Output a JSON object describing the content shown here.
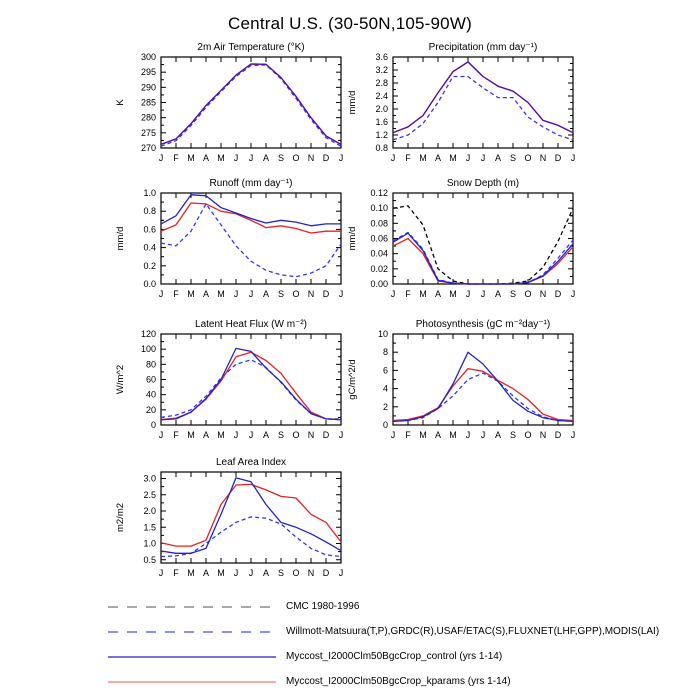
{
  "page_title": "Central U.S. (30-50N,105-90W)",
  "months": [
    "J",
    "F",
    "M",
    "A",
    "M",
    "J",
    "J",
    "A",
    "S",
    "O",
    "N",
    "D",
    "J"
  ],
  "series_defs": {
    "cmc": {
      "name": "CMC 1980-1996",
      "color": "#000000",
      "dashed": true
    },
    "obs": {
      "name": "Willmott-Matsuura(T,P),GRDC(R),USAF/ETAC(S),FLUXNET(LHF,GPP),MODIS(LAI)",
      "color": "#3333ff",
      "dashed": true
    },
    "control": {
      "name": "Myccost_I2000Clm50BgcCrop_control (yrs 1-14)",
      "color": "#2222cc",
      "dashed": false
    },
    "kparams": {
      "name": "Myccost_I2000Clm50BgcCrop_kparams (yrs 1-14)",
      "color": "#e62222",
      "dashed": false
    }
  },
  "legend": [
    {
      "series": "cmc",
      "label": "CMC 1980-1996",
      "color": "#8c8c8c",
      "dashed": true
    },
    {
      "series": "obs",
      "label": "Willmott-Matsuura(T,P),GRDC(R),USAF/ETAC(S),FLUXNET(LHF,GPP),MODIS(LAI)",
      "color": "#6b6be6",
      "dashed": true
    },
    {
      "series": "control",
      "label": "Myccost_I2000Clm50BgcCrop_control (yrs 1-14)",
      "color": "#4646c8",
      "dashed": false
    },
    {
      "series": "kparams",
      "label": "Myccost_I2000Clm50BgcCrop_kparams (yrs 1-14)",
      "color": "#f09393",
      "dashed": false
    }
  ],
  "chart_data": [
    {
      "id": "air-temperature",
      "type": "line",
      "title": "2m Air Temperature (°K)",
      "ylabel": "K",
      "ylim": [
        270,
        300
      ],
      "yticks": [
        270,
        275,
        280,
        285,
        290,
        295,
        300
      ],
      "ydecimals": 0,
      "categories": [
        "J",
        "F",
        "M",
        "A",
        "M",
        "J",
        "J",
        "A",
        "S",
        "O",
        "N",
        "D",
        "J"
      ],
      "series": [
        {
          "key": "obs",
          "values": [
            270.6,
            272.4,
            277.4,
            283.4,
            288.6,
            293.6,
            297.2,
            297.4,
            292.8,
            286.4,
            279.4,
            273.4,
            270.6
          ]
        },
        {
          "key": "kparams",
          "values": [
            271.2,
            273.0,
            278.0,
            284.0,
            289.0,
            294.0,
            297.7,
            297.6,
            293.2,
            287.0,
            280.0,
            274.0,
            271.2
          ]
        },
        {
          "key": "control",
          "values": [
            271.2,
            273.0,
            278.0,
            284.0,
            289.0,
            294.0,
            297.7,
            297.6,
            293.2,
            287.0,
            280.0,
            274.0,
            271.2
          ],
          "color": "#4b10b4"
        }
      ]
    },
    {
      "id": "precipitation",
      "type": "line",
      "title": "Precipitation (mm day⁻¹)",
      "ylabel": "mm/d",
      "ylim": [
        0.8,
        3.6
      ],
      "yticks": [
        0.8,
        1.2,
        1.6,
        2.0,
        2.4,
        2.8,
        3.2,
        3.6
      ],
      "ydecimals": 1,
      "categories": [
        "J",
        "F",
        "M",
        "A",
        "M",
        "J",
        "J",
        "A",
        "S",
        "O",
        "N",
        "D",
        "J"
      ],
      "series": [
        {
          "key": "obs",
          "values": [
            1.05,
            1.2,
            1.55,
            2.2,
            3.0,
            3.0,
            2.65,
            2.35,
            2.35,
            1.75,
            1.45,
            1.2,
            1.05
          ]
        },
        {
          "key": "kparams",
          "values": [
            1.27,
            1.45,
            1.8,
            2.5,
            3.15,
            3.45,
            3.0,
            2.7,
            2.55,
            2.2,
            1.65,
            1.5,
            1.27
          ]
        },
        {
          "key": "control",
          "values": [
            1.27,
            1.45,
            1.8,
            2.5,
            3.15,
            3.45,
            3.0,
            2.7,
            2.55,
            2.2,
            1.65,
            1.5,
            1.27
          ],
          "color": "#4b10b4"
        }
      ]
    },
    {
      "id": "runoff",
      "type": "line",
      "title": "Runoff (mm day⁻¹)",
      "ylabel": "mm/d",
      "ylim": [
        0.0,
        1.0
      ],
      "yticks": [
        0.0,
        0.2,
        0.4,
        0.6,
        0.8,
        1.0
      ],
      "ydecimals": 1,
      "categories": [
        "J",
        "F",
        "M",
        "A",
        "M",
        "J",
        "J",
        "A",
        "S",
        "O",
        "N",
        "D",
        "J"
      ],
      "series": [
        {
          "key": "obs",
          "values": [
            0.45,
            0.42,
            0.58,
            0.88,
            0.65,
            0.42,
            0.25,
            0.15,
            0.1,
            0.08,
            0.12,
            0.2,
            0.44
          ]
        },
        {
          "key": "kparams",
          "values": [
            0.58,
            0.65,
            0.89,
            0.88,
            0.8,
            0.77,
            0.7,
            0.62,
            0.64,
            0.61,
            0.56,
            0.58,
            0.58
          ]
        },
        {
          "key": "control",
          "values": [
            0.66,
            0.75,
            0.98,
            0.97,
            0.84,
            0.78,
            0.72,
            0.67,
            0.7,
            0.68,
            0.64,
            0.66,
            0.66
          ]
        }
      ]
    },
    {
      "id": "snow-depth",
      "type": "line",
      "title": "Snow Depth (m)",
      "ylabel": "mm/d",
      "ylim": [
        0.0,
        0.12
      ],
      "yticks": [
        0.0,
        0.02,
        0.04,
        0.06,
        0.08,
        0.1,
        0.12
      ],
      "ydecimals": 2,
      "categories": [
        "J",
        "F",
        "M",
        "A",
        "M",
        "J",
        "J",
        "A",
        "S",
        "O",
        "N",
        "D",
        "J"
      ],
      "series": [
        {
          "key": "cmc",
          "values": [
            0.1,
            0.103,
            0.078,
            0.02,
            0.004,
            0.0,
            0.0,
            0.0,
            0.001,
            0.004,
            0.022,
            0.056,
            0.1
          ]
        },
        {
          "key": "obs",
          "values": [
            0.057,
            0.068,
            0.046,
            0.006,
            0.001,
            0.0,
            0.0,
            0.0,
            0.0,
            0.002,
            0.012,
            0.034,
            0.058
          ]
        },
        {
          "key": "kparams",
          "values": [
            0.05,
            0.06,
            0.04,
            0.004,
            0.001,
            0.0,
            0.0,
            0.0,
            0.0,
            0.002,
            0.01,
            0.027,
            0.049
          ]
        },
        {
          "key": "control",
          "values": [
            0.055,
            0.067,
            0.044,
            0.005,
            0.001,
            0.0,
            0.0,
            0.0,
            0.0,
            0.002,
            0.011,
            0.03,
            0.053
          ]
        }
      ]
    },
    {
      "id": "latent-heat-flux",
      "type": "line",
      "title": "Latent Heat Flux (W m⁻²)",
      "ylabel": "W/m^2",
      "ylim": [
        0,
        120
      ],
      "yticks": [
        0,
        20,
        40,
        60,
        80,
        100,
        120
      ],
      "ydecimals": 0,
      "categories": [
        "J",
        "F",
        "M",
        "A",
        "M",
        "J",
        "J",
        "A",
        "S",
        "O",
        "N",
        "D",
        "J"
      ],
      "series": [
        {
          "key": "obs",
          "values": [
            10,
            13,
            20,
            38,
            62,
            80,
            86,
            76,
            56,
            33,
            15,
            8,
            8
          ]
        },
        {
          "key": "kparams",
          "values": [
            7,
            9,
            17,
            34,
            58,
            90,
            96,
            85,
            68,
            42,
            17,
            8,
            7
          ]
        },
        {
          "key": "control",
          "values": [
            7,
            8,
            17,
            35,
            60,
            101,
            97,
            75,
            57,
            34,
            15,
            8,
            7
          ]
        }
      ]
    },
    {
      "id": "photosynthesis",
      "type": "line",
      "title": "Photosynthesis (gC m⁻²day⁻¹)",
      "ylabel": "gC/m^2/d",
      "ylim": [
        0,
        10
      ],
      "yticks": [
        0,
        2,
        4,
        6,
        8,
        10
      ],
      "ydecimals": 0,
      "categories": [
        "J",
        "F",
        "M",
        "A",
        "M",
        "J",
        "J",
        "A",
        "S",
        "O",
        "N",
        "D",
        "J"
      ],
      "series": [
        {
          "key": "obs",
          "values": [
            0.4,
            0.5,
            0.8,
            1.8,
            3.2,
            5.0,
            5.7,
            4.8,
            3.2,
            1.8,
            0.9,
            0.5,
            0.4
          ]
        },
        {
          "key": "kparams",
          "values": [
            0.5,
            0.6,
            1.0,
            1.9,
            4.3,
            6.2,
            5.9,
            4.9,
            4.0,
            2.8,
            1.2,
            0.6,
            0.5
          ]
        },
        {
          "key": "control",
          "values": [
            0.4,
            0.5,
            0.9,
            1.8,
            4.5,
            8.0,
            6.7,
            4.8,
            2.7,
            1.5,
            0.8,
            0.5,
            0.4
          ]
        }
      ]
    },
    {
      "id": "leaf-area-index",
      "type": "line",
      "title": "Leaf Area Index",
      "ylabel": "m2/m2",
      "ylim": [
        0.4,
        3.2
      ],
      "yticks": [
        0.5,
        1.0,
        1.5,
        2.0,
        2.5,
        3.0
      ],
      "ydecimals": 1,
      "categories": [
        "J",
        "F",
        "M",
        "A",
        "M",
        "J",
        "J",
        "A",
        "S",
        "O",
        "N",
        "D",
        "J"
      ],
      "series": [
        {
          "key": "obs",
          "values": [
            0.6,
            0.62,
            0.7,
            1.0,
            1.35,
            1.65,
            1.82,
            1.78,
            1.6,
            1.2,
            0.85,
            0.65,
            0.6
          ]
        },
        {
          "key": "kparams",
          "values": [
            1.02,
            0.92,
            0.92,
            1.1,
            2.2,
            2.8,
            2.82,
            2.65,
            2.45,
            2.4,
            1.9,
            1.65,
            1.05
          ]
        },
        {
          "key": "control",
          "values": [
            0.77,
            0.7,
            0.7,
            0.85,
            1.9,
            3.02,
            2.9,
            2.2,
            1.65,
            1.5,
            1.3,
            1.05,
            0.78
          ]
        }
      ]
    }
  ]
}
